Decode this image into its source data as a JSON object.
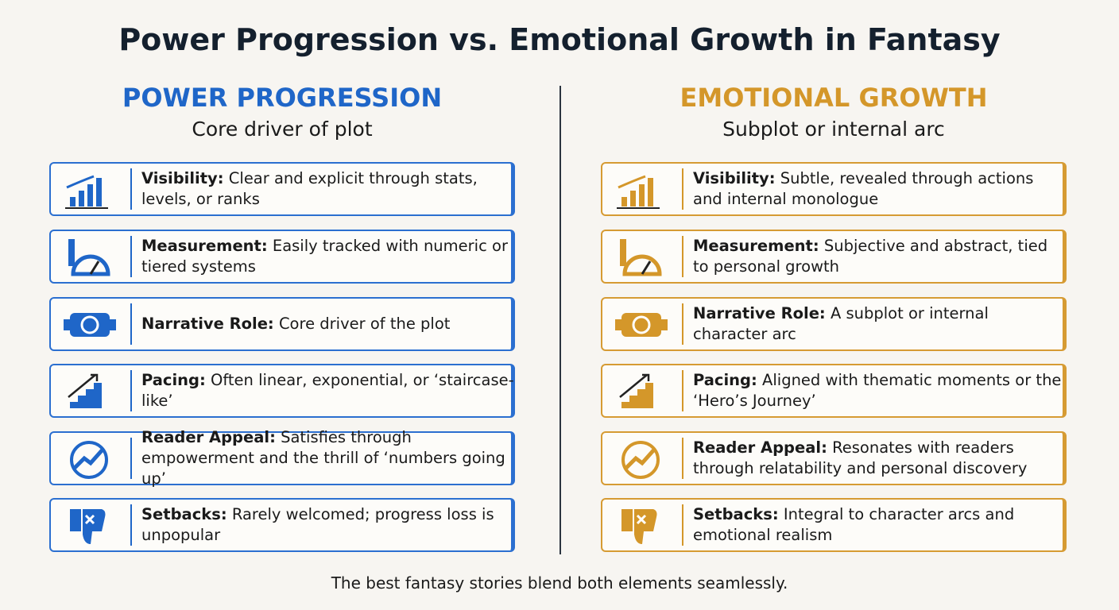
{
  "header": {
    "title": "Power Progression vs. Emotional Growth in Fantasy"
  },
  "columns": [
    {
      "heading": "POWER PROGRESSION",
      "subtitle": "Core driver of plot",
      "rows": [
        {
          "label": "Visibility:",
          "text": "Clear and explicit through stats, levels, or ranks"
        },
        {
          "label": "Measurement:",
          "text": "Easily tracked with numeric or tiered systems"
        },
        {
          "label": "Narrative Role:",
          "text": "Core driver of the plot"
        },
        {
          "label": "Pacing:",
          "text": "Often linear, exponential, or ‘staircase-like’"
        },
        {
          "label": "Reader Appeal:",
          "text": "Satisfies through empowerment and the thrill of ‘numbers going up’"
        },
        {
          "label": "Setbacks:",
          "text": "Rarely welcomed; progress loss is unpopular"
        }
      ]
    },
    {
      "heading": "EMOTIONAL GROWTH",
      "subtitle": "Subplot or internal arc",
      "rows": [
        {
          "label": "Visibility:",
          "text": "Subtle, revealed through actions and internal monologue"
        },
        {
          "label": "Measurement:",
          "text": "Subjective and abstract, tied to personal growth"
        },
        {
          "label": "Narrative Role:",
          "text": "A subplot or internal character arc"
        },
        {
          "label": "Pacing:",
          "text": "Aligned with thematic moments or the ‘Hero’s Journey’"
        },
        {
          "label": "Reader Appeal:",
          "text": "Resonates with readers through relatability and personal discovery"
        },
        {
          "label": "Setbacks:",
          "text": "Integral to character arcs and emotional realism"
        }
      ]
    }
  ],
  "footer": "The best fantasy stories blend both elements seamlessly."
}
